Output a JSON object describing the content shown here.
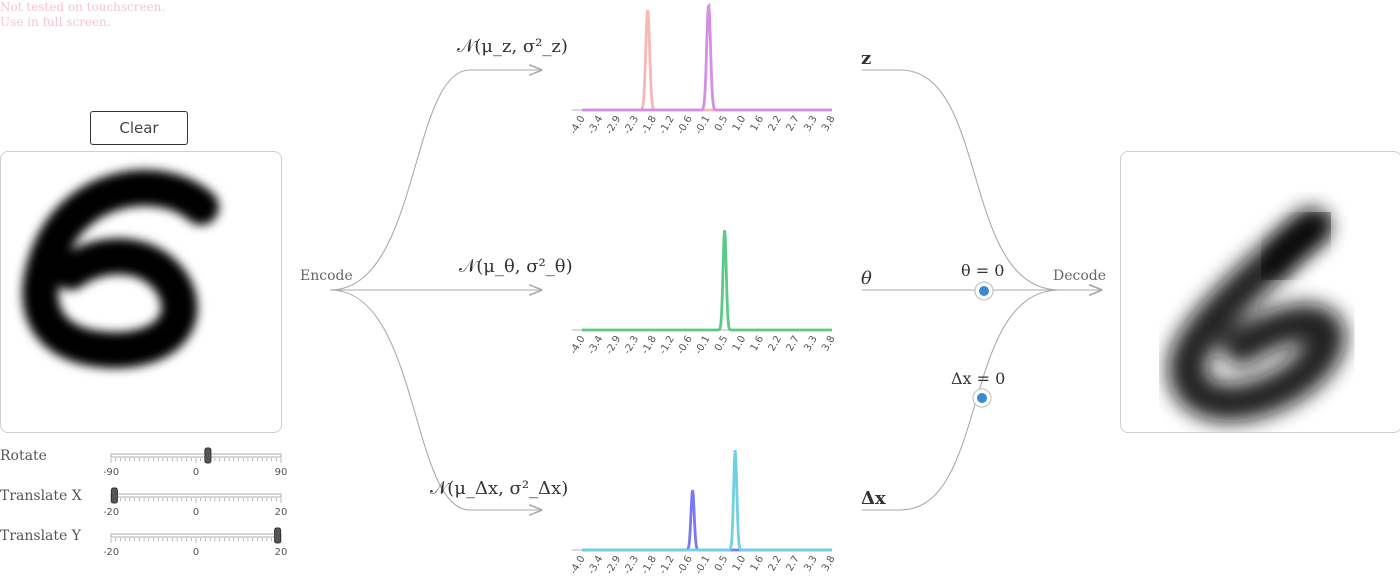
{
  "notice": {
    "line1": "Not tested on touchscreen.",
    "line2": "Use in full screen."
  },
  "clear_button": "Clear",
  "labels": {
    "encode": "Encode",
    "decode": "Decode"
  },
  "distributions": {
    "z": "𝒩(μ_z, σ²_z)",
    "theta": "𝒩(μ_θ, σ²_θ)",
    "dx": "𝒩(μ_Δx, σ²_Δx)"
  },
  "variables": {
    "z": "z",
    "theta": "θ",
    "dx": "Δx"
  },
  "knobs": {
    "theta_label": "θ = 0",
    "dx_label": "Δx = 0"
  },
  "sliders": [
    {
      "label": "Rotate",
      "min": "-90",
      "mid": "0",
      "max": "90",
      "value_fraction": 0.57
    },
    {
      "label": "Translate X",
      "min": "-20",
      "mid": "0",
      "max": "20",
      "value_fraction": 0.02
    },
    {
      "label": "Translate Y",
      "min": "-20",
      "mid": "0",
      "max": "20",
      "value_fraction": 0.98
    }
  ],
  "axis_ticks": [
    "-4.0",
    "-3.4",
    "-2.9",
    "-2.3",
    "-1.8",
    "-1.2",
    "-0.6",
    "-0.1",
    "0.5",
    "1.0",
    "1.6",
    "2.2",
    "2.7",
    "3.3",
    "3.8"
  ],
  "chart_data": [
    {
      "type": "line",
      "series": [
        {
          "mean": -1.95,
          "sd": 0.06,
          "peak": 1.0,
          "color": "#f7b8b6"
        },
        {
          "mean": -0.05,
          "sd": 0.06,
          "peak": 1.05,
          "color": "#d48ee6"
        }
      ],
      "xlim": [
        -4.0,
        3.8
      ]
    },
    {
      "type": "line",
      "series": [
        {
          "mean": 0.45,
          "sd": 0.05,
          "peak": 1.0,
          "color": "#5dc987"
        }
      ],
      "xlim": [
        -4.0,
        3.8
      ]
    },
    {
      "type": "line",
      "series": [
        {
          "mean": -0.55,
          "sd": 0.05,
          "peak": 0.6,
          "color": "#7b78f2"
        },
        {
          "mean": 0.78,
          "sd": 0.05,
          "peak": 1.0,
          "color": "#73cfe3"
        }
      ],
      "xlim": [
        -4.0,
        3.8
      ]
    }
  ],
  "colors": {
    "knob": "#3b88d4",
    "arrow": "#aaaaaa"
  }
}
